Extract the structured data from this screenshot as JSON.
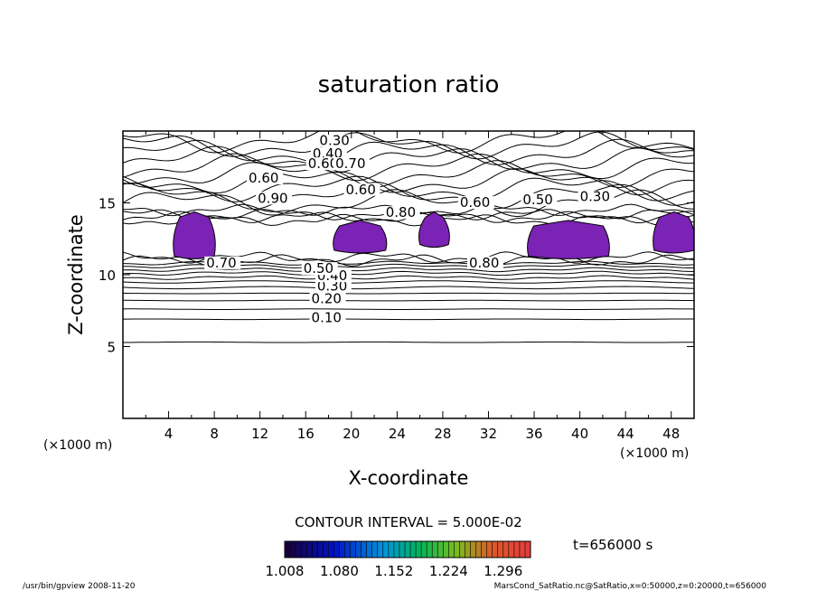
{
  "footer": {
    "left": "/usr/bin/gpview   2008-11-20",
    "right": "MarsCond_SatRatio.nc@SatRatio,x=0:50000,z=0:20000,t=656000"
  },
  "time_label": "t=656000 s",
  "contour_interval": "CONTOUR INTERVAL = 5.000E-02",
  "colors": {
    "shade": "#7a23b4",
    "line": "#000000"
  },
  "chart_data": {
    "type": "contour",
    "title": "saturation ratio",
    "xlabel": "X-coordinate",
    "ylabel": "Z-coordinate",
    "x_unit_label": "(×1000 m)",
    "y_unit_label": "(×1000 m)",
    "xlim": [
      0,
      50
    ],
    "ylim": [
      0,
      20
    ],
    "x_ticks": [
      "4",
      "8",
      "12",
      "16",
      "20",
      "24",
      "28",
      "32",
      "36",
      "40",
      "44",
      "48"
    ],
    "y_ticks": [
      "5",
      "10",
      "15"
    ],
    "contour_labels": [
      {
        "text": "0.10",
        "x": 16.5,
        "y": 6.9
      },
      {
        "text": "0.20",
        "x": 16.5,
        "y": 8.2
      },
      {
        "text": "0.30",
        "x": 17.0,
        "y": 9.1
      },
      {
        "text": "0.40",
        "x": 17.0,
        "y": 9.8
      },
      {
        "text": "0.50",
        "x": 15.8,
        "y": 10.3
      },
      {
        "text": "0.70",
        "x": 7.3,
        "y": 10.7
      },
      {
        "text": "0.80",
        "x": 30.3,
        "y": 10.7
      },
      {
        "text": "0.30",
        "x": 17.2,
        "y": 19.2
      },
      {
        "text": "0.40",
        "x": 16.6,
        "y": 18.3
      },
      {
        "text": "0.60",
        "x": 16.2,
        "y": 17.6
      },
      {
        "text": "0.70",
        "x": 18.6,
        "y": 17.6
      },
      {
        "text": "0.60",
        "x": 11.0,
        "y": 16.6
      },
      {
        "text": "0.60",
        "x": 19.5,
        "y": 15.8
      },
      {
        "text": "0.90",
        "x": 11.8,
        "y": 15.2
      },
      {
        "text": "0.60",
        "x": 29.5,
        "y": 14.9
      },
      {
        "text": "0.50",
        "x": 35.0,
        "y": 15.1
      },
      {
        "text": "0.30",
        "x": 40.0,
        "y": 15.3
      },
      {
        "text": "0.80",
        "x": 23.0,
        "y": 14.2
      }
    ],
    "shaded_regions_x_ranges": [
      [
        4.5,
        8.0
      ],
      [
        18.5,
        23.0
      ],
      [
        26.0,
        28.5
      ],
      [
        35.5,
        42.5
      ],
      [
        46.5,
        50.0
      ]
    ],
    "colorbar": {
      "min": 1.008,
      "max": 1.332,
      "tick_labels": [
        "1.008",
        "1.080",
        "1.152",
        "1.224",
        "1.296"
      ]
    }
  }
}
